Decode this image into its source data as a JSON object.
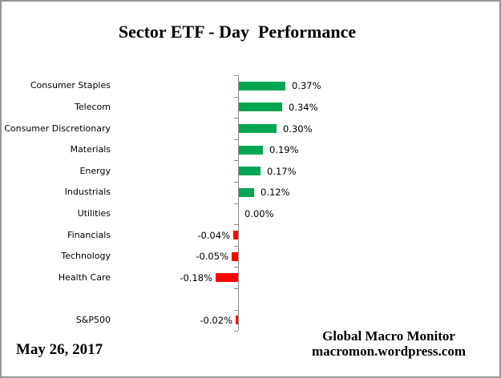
{
  "title": "Sector ETF - Day  Performance",
  "footer": {
    "date": "May 26, 2017",
    "credit_line1": "Global Macro Monitor",
    "credit_line2": "macromon.wordpress.com"
  },
  "colors": {
    "positive_bar": "#00A651",
    "negative_bar": "#FF0000",
    "axis": "#8C8C8C",
    "frame_border": "#969696",
    "background": "#FFFFFF",
    "text": "#000000"
  },
  "chart_data": {
    "type": "bar",
    "orientation": "horizontal",
    "title": "Sector ETF - Day  Performance",
    "categories": [
      "Consumer Staples",
      "Telecom",
      "Consumer Discretionary",
      "Materials",
      "Energy",
      "Industrials",
      "Utilities",
      "Financials",
      "Technology",
      "Health Care",
      "",
      "S&P500"
    ],
    "values": [
      0.37,
      0.34,
      0.3,
      0.19,
      0.17,
      0.12,
      0.0,
      -0.04,
      -0.05,
      -0.18,
      null,
      -0.02
    ],
    "value_labels": [
      "0.37%",
      "0.34%",
      "0.30%",
      "0.19%",
      "0.17%",
      "0.12%",
      "0.00%",
      "-0.04%",
      "-0.05%",
      "-0.18%",
      "",
      "-0.02%"
    ],
    "unit": "percent",
    "xlabel": "",
    "ylabel": "",
    "grid": false,
    "legend": false,
    "value_label_position": "outside-end"
  }
}
